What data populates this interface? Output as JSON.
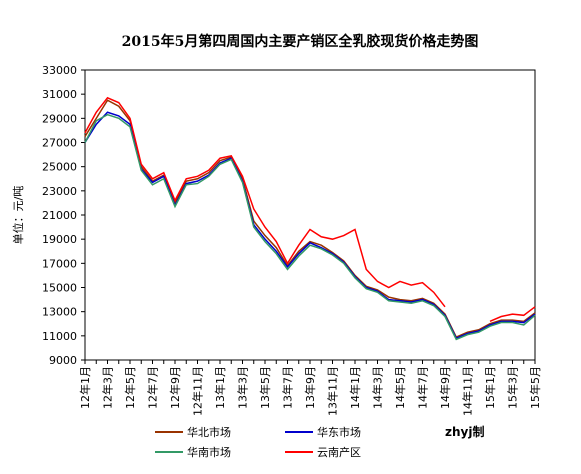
{
  "chart_data": {
    "type": "line",
    "title": "2015年5月第四周国内主要产销区全乳胶现货价格走势图",
    "y_label": "单位：元/吨",
    "note": "zhyj制",
    "categories": [
      "12年1月",
      null,
      "12年3月",
      null,
      "12年5月",
      null,
      "12年7月",
      null,
      "12年9月",
      null,
      "12年11月",
      null,
      "13年1月",
      null,
      "13年3月",
      null,
      "13年5月",
      null,
      "13年7月",
      null,
      "13年9月",
      null,
      "13年11月",
      null,
      "14年1月",
      null,
      "14年3月",
      null,
      "14年5月",
      null,
      "14年7月",
      null,
      "14年9月",
      null,
      "14年11月",
      null,
      "15年1月",
      null,
      "15年3月",
      null,
      "15年5月"
    ],
    "series": [
      {
        "name": "华北市场",
        "color": "#993300",
        "values": [
          27500,
          29000,
          30500,
          30000,
          28800,
          25000,
          23800,
          24300,
          22000,
          23800,
          24000,
          24500,
          25500,
          25800,
          24000,
          20500,
          19300,
          18300,
          16800,
          18000,
          18800,
          18500,
          17900,
          17200,
          16000,
          15100,
          14800,
          14200,
          14000,
          13900,
          14100,
          13700,
          12800,
          10900,
          11300,
          11500,
          12000,
          12300,
          12300,
          12200,
          12900
        ]
      },
      {
        "name": "华东市场",
        "color": "#0000cc",
        "values": [
          27000,
          28500,
          29500,
          29200,
          28500,
          24800,
          23700,
          24200,
          21800,
          23600,
          23800,
          24300,
          25300,
          25700,
          23800,
          20200,
          19000,
          18000,
          16700,
          17800,
          18700,
          18300,
          17800,
          17100,
          15900,
          15000,
          14700,
          14000,
          13900,
          13800,
          14000,
          13600,
          12700,
          10800,
          11200,
          11400,
          11900,
          12200,
          12200,
          12100,
          12800
        ]
      },
      {
        "name": "华南市场",
        "color": "#339966",
        "values": [
          27000,
          28800,
          29300,
          29000,
          28300,
          24700,
          23500,
          24000,
          21700,
          23500,
          23600,
          24200,
          25200,
          25600,
          23700,
          20000,
          18800,
          17800,
          16500,
          17600,
          18500,
          18200,
          17700,
          17000,
          15800,
          14900,
          14600,
          13900,
          13800,
          13700,
          13900,
          13500,
          12600,
          10700,
          11100,
          11300,
          11800,
          12100,
          12100,
          11900,
          12700
        ]
      },
      {
        "name": "云南产区",
        "color": "#ff0000",
        "values": [
          27800,
          29500,
          30700,
          30300,
          29000,
          25200,
          24000,
          24500,
          22200,
          24000,
          24200,
          24700,
          25700,
          25900,
          24200,
          21500,
          20000,
          18800,
          17000,
          18500,
          19800,
          19200,
          19000,
          19300,
          19800,
          16500,
          15500,
          15000,
          15500,
          15200,
          15400,
          14600,
          13400,
          null,
          null,
          null,
          12200,
          12600,
          12800,
          12700,
          13400
        ]
      }
    ],
    "ylim": [
      9000,
      33000
    ],
    "yticks": [
      9000,
      11000,
      13000,
      15000,
      17000,
      19000,
      21000,
      23000,
      25000,
      27000,
      29000,
      31000,
      33000
    ]
  }
}
